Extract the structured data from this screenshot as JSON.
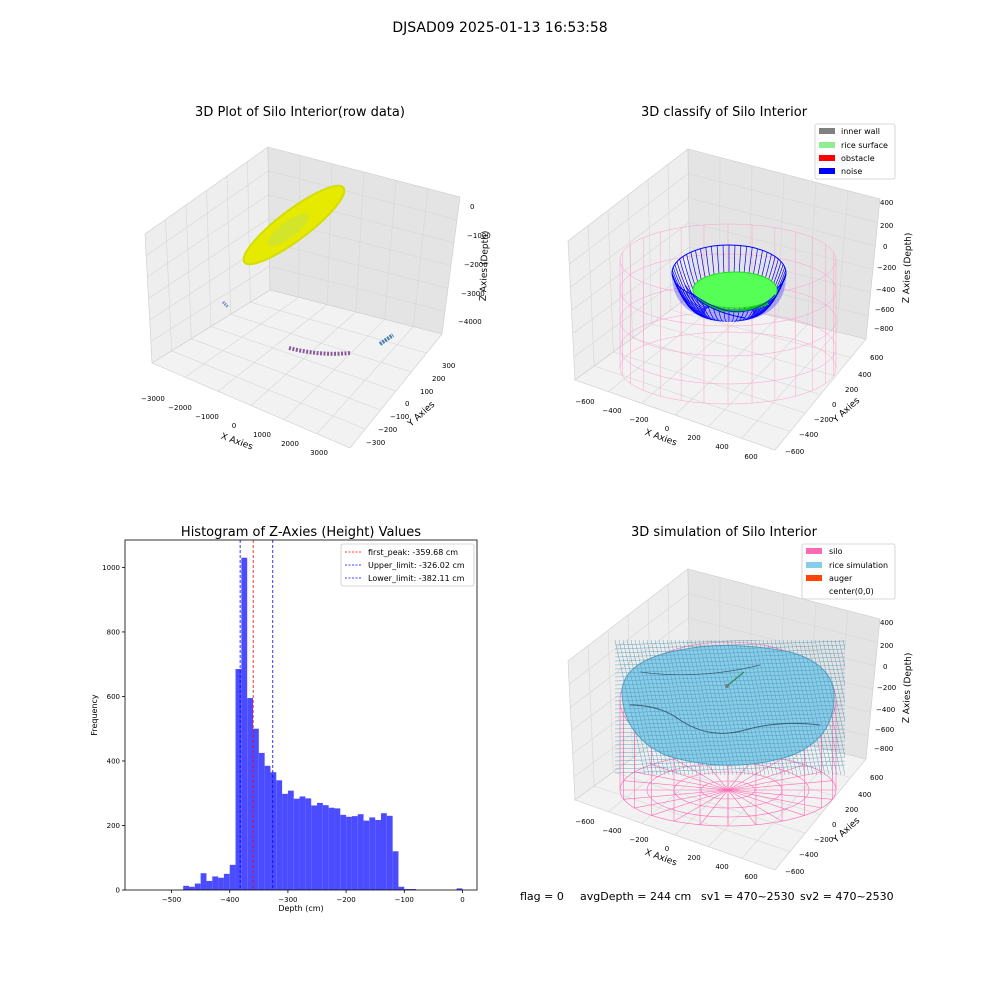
{
  "figure_title": "DJSAD09 2025-01-13 16:53:58",
  "footer": {
    "flag": "flag = 0",
    "avg_depth": "avgDepth = 244 cm",
    "sv1": "sv1 = 470~2530",
    "sv2": "sv2 = 470~2530"
  },
  "colors": {
    "inner_wall": "#808080",
    "rice_surface": "#90ee90",
    "obstacle": "#ff0000",
    "noise": "#0000ff",
    "silo": "#ff69b4",
    "rice_simulation": "#87ceeb",
    "auger": "#ff4500",
    "hist_bar": "#4b4bff",
    "raw_points": "#ffff00"
  },
  "panels": {
    "raw": {
      "title": "3D Plot of Silo Interior(row data)",
      "xlabel": "X Axies",
      "ylabel": "Y Axies",
      "zlabel": "Z Axies (Depth)",
      "x_ticks": [
        "−3000",
        "−2000",
        "−1000",
        "0",
        "1000",
        "2000",
        "3000"
      ],
      "y_ticks": [
        "300",
        "200",
        "100",
        "0",
        "−100",
        "−200",
        "−300"
      ],
      "z_ticks": [
        "0",
        "−1000",
        "−2000",
        "−3000",
        "−4000"
      ]
    },
    "classify": {
      "title": "3D classify of Silo Interior",
      "xlabel": "X Axies",
      "ylabel": "Y Axies",
      "zlabel": "Z Axies (Depth)",
      "x_ticks": [
        "−600",
        "−400",
        "−200",
        "0",
        "200",
        "400",
        "600"
      ],
      "y_ticks": [
        "600",
        "400",
        "200",
        "0",
        "−200",
        "−400",
        "−600"
      ],
      "z_ticks": [
        "400",
        "200",
        "0",
        "−200",
        "−400",
        "−600",
        "−800"
      ],
      "legend": [
        "inner wall",
        "rice surface",
        "obstacle",
        "noise"
      ]
    },
    "simulation": {
      "title": "3D simulation of Silo Interior",
      "xlabel": "X Axies",
      "ylabel": "Y Axies",
      "zlabel": "Z Axies (Depth)",
      "x_ticks": [
        "−600",
        "−400",
        "−200",
        "0",
        "200",
        "400",
        "600"
      ],
      "y_ticks": [
        "600",
        "400",
        "200",
        "0",
        "−200",
        "−400",
        "−600"
      ],
      "z_ticks": [
        "400",
        "200",
        "0",
        "−200",
        "−400",
        "−600",
        "−800"
      ],
      "legend": [
        "silo",
        "rice simulation",
        "auger",
        "center(0,0)"
      ]
    }
  },
  "chart_data": {
    "type": "bar",
    "title": "Histogram of Z-Axies (Height) Values",
    "xlabel": "Depth (cm)",
    "ylabel": "Frequency",
    "xlim": [
      -580,
      25
    ],
    "ylim": [
      0,
      1085
    ],
    "x_ticks": [
      -500,
      -400,
      -300,
      -200,
      -100,
      0
    ],
    "x_tick_labels": [
      "−500",
      "−400",
      "−300",
      "−200",
      "−100",
      "0"
    ],
    "y_ticks": [
      0,
      200,
      400,
      600,
      800,
      1000
    ],
    "bin_width": 10,
    "bin_starts": [
      -480,
      -470,
      -460,
      -450,
      -440,
      -430,
      -420,
      -410,
      -400,
      -390,
      -380,
      -370,
      -360,
      -350,
      -340,
      -330,
      -320,
      -310,
      -300,
      -290,
      -280,
      -270,
      -260,
      -250,
      -240,
      -230,
      -220,
      -210,
      -200,
      -190,
      -180,
      -170,
      -160,
      -150,
      -140,
      -130,
      -120,
      -110,
      -100,
      -90,
      -80,
      -70,
      -60,
      -50,
      -40,
      -30,
      -20,
      -10,
      0
    ],
    "values": [
      13,
      10,
      20,
      52,
      28,
      42,
      38,
      50,
      78,
      685,
      1030,
      595,
      500,
      425,
      385,
      365,
      340,
      298,
      308,
      283,
      290,
      284,
      262,
      270,
      263,
      255,
      253,
      233,
      227,
      229,
      235,
      215,
      225,
      217,
      238,
      230,
      120,
      10,
      3,
      3,
      0,
      0,
      0,
      0,
      0,
      0,
      0,
      5,
      0
    ],
    "vlines": [
      {
        "label": "first_peak: -359.68 cm",
        "x": -359.68,
        "color": "#ff0000"
      },
      {
        "label": "Upper_limit: -326.02 cm",
        "x": -326.02,
        "color": "#0000ff"
      },
      {
        "label": "Lower_limit: -382.11 cm",
        "x": -382.11,
        "color": "#0000ff"
      }
    ],
    "grid": false,
    "legend_position": "top-right"
  }
}
